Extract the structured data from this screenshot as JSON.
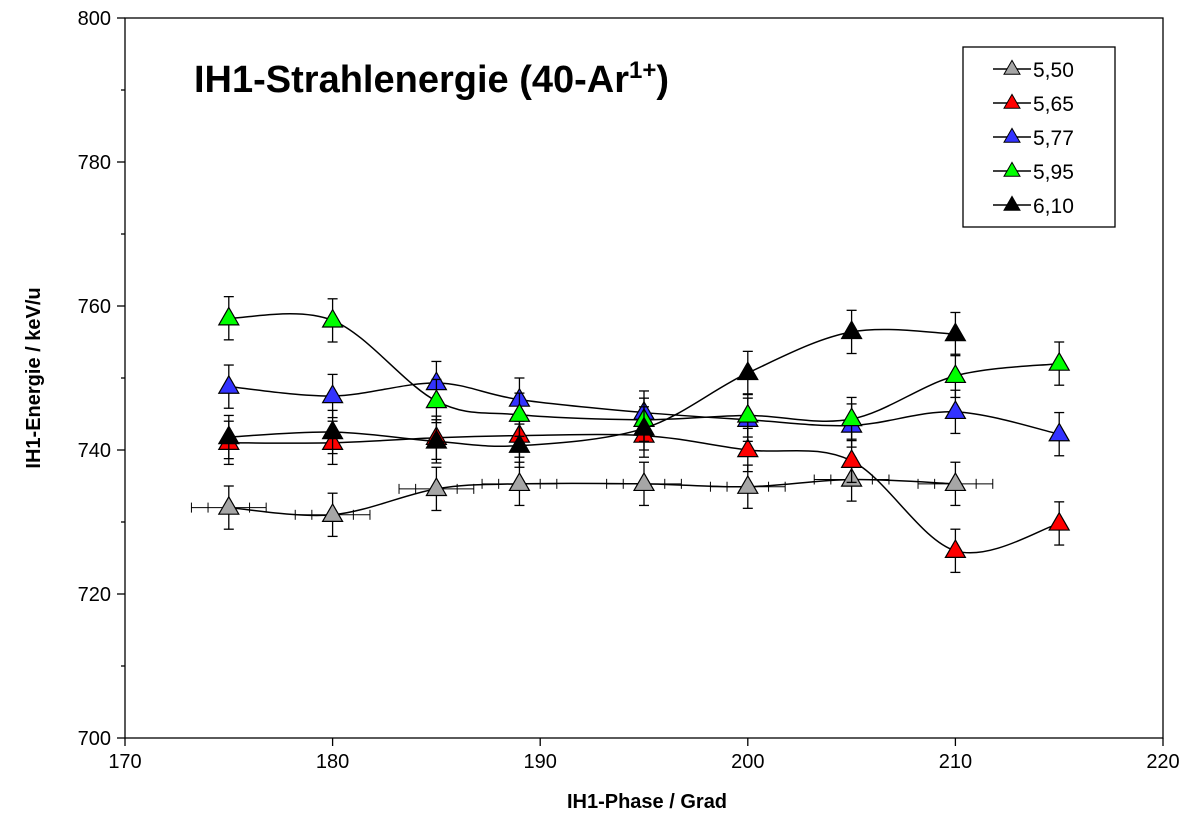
{
  "chart_data": {
    "type": "line",
    "title": "IH1-Strahlenergie (40-Ar",
    "title_sup": "1+",
    "title_end": ")",
    "xlabel": "IH1-Phase / Grad",
    "ylabel": "IH1-Energie / keV/u",
    "xlim": [
      170,
      220
    ],
    "ylim": [
      700,
      800
    ],
    "xticks": [
      "170",
      "180",
      "190",
      "200",
      "210",
      "220"
    ],
    "yticks": [
      "700",
      "720",
      "740",
      "760",
      "780",
      "800"
    ],
    "grid": false,
    "legend_position": "top-right",
    "marker": "triangle",
    "error_bar_y": 3,
    "series": [
      {
        "name": "5,50",
        "color": "#a6a6a6",
        "xerr": 1.0,
        "x": [
          175,
          180,
          185,
          189,
          195,
          200,
          205,
          210
        ],
        "y": [
          732.0,
          731.0,
          734.6,
          735.3,
          735.3,
          734.9,
          735.9,
          735.3
        ]
      },
      {
        "name": "5,65",
        "color": "#ff0000",
        "x": [
          175,
          180,
          185,
          189,
          195,
          200,
          205,
          210,
          215
        ],
        "y": [
          741.0,
          741.0,
          741.7,
          742.0,
          742.0,
          740.0,
          738.5,
          726.0,
          729.8
        ]
      },
      {
        "name": "5,77",
        "color": "#3333ff",
        "x": [
          175,
          180,
          185,
          189,
          195,
          200,
          205,
          210,
          215
        ],
        "y": [
          748.8,
          747.5,
          749.3,
          747.0,
          745.2,
          744.2,
          743.4,
          745.3,
          742.2
        ]
      },
      {
        "name": "5,95",
        "color": "#00ff00",
        "x": [
          175,
          180,
          185,
          189,
          195,
          200,
          205,
          210,
          215
        ],
        "y": [
          758.3,
          758.0,
          746.8,
          744.9,
          744.2,
          744.8,
          744.3,
          750.3,
          752.0
        ]
      },
      {
        "name": "6,10",
        "color": "#000000",
        "x": [
          175,
          180,
          185,
          189,
          195,
          200,
          205,
          210
        ],
        "y": [
          741.8,
          742.5,
          741.2,
          740.6,
          743.0,
          750.7,
          756.4,
          756.1
        ]
      }
    ]
  }
}
